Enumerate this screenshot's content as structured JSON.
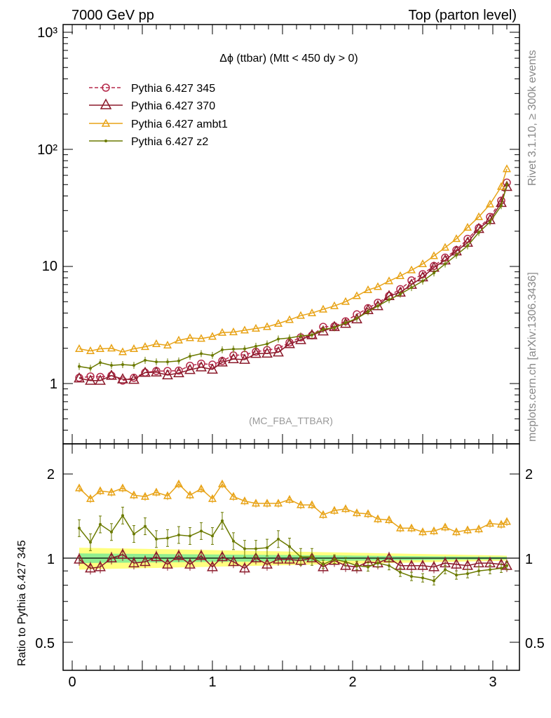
{
  "header": {
    "left": "7000 GeV pp",
    "right": "Top (parton level)"
  },
  "side_labels": {
    "rivet": "Rivet 3.1.10, ≥ 300k events",
    "mcplots": "mcplots.cern.ch [arXiv:1306.3436]"
  },
  "colors": {
    "p345": "#b5294a",
    "p370": "#8b1a2b",
    "ambt1": "#e8a317",
    "z2": "#6b7a00",
    "band_green": "#90ee90",
    "band_yellow": "#ffff80"
  },
  "chart_data": [
    {
      "type": "line",
      "title": "Δϕ (ttbar) (Mtt < 450 dy > 0)",
      "watermark": "(MC_FBA_TTBAR)",
      "yscale": "log",
      "ylim": [
        0.3,
        1100
      ],
      "xlim": [
        -0.06,
        3.2
      ],
      "ytick_labels": [
        "1",
        "10",
        "10²",
        "10³"
      ],
      "legend_position": "top-left",
      "x": [
        0.05,
        0.13,
        0.2,
        0.28,
        0.36,
        0.44,
        0.52,
        0.6,
        0.68,
        0.76,
        0.84,
        0.92,
        1.0,
        1.07,
        1.15,
        1.23,
        1.31,
        1.39,
        1.47,
        1.55,
        1.63,
        1.71,
        1.79,
        1.87,
        1.95,
        2.03,
        2.11,
        2.18,
        2.26,
        2.34,
        2.42,
        2.5,
        2.58,
        2.66,
        2.74,
        2.82,
        2.9,
        2.98,
        3.06,
        3.1
      ],
      "series": [
        {
          "name": "Pythia 6.427 345",
          "marker": "circle",
          "dashed": true,
          "values": [
            1.12,
            1.15,
            1.14,
            1.17,
            1.06,
            1.12,
            1.24,
            1.28,
            1.28,
            1.29,
            1.42,
            1.48,
            1.45,
            1.56,
            1.74,
            1.76,
            1.87,
            1.93,
            2.0,
            2.24,
            2.48,
            2.58,
            3.05,
            3.08,
            3.4,
            3.9,
            4.4,
            4.9,
            5.6,
            6.4,
            7.6,
            8.6,
            10.1,
            11.9,
            13.8,
            17.2,
            21.3,
            26.5,
            36.5,
            52.0
          ]
        },
        {
          "name": "Pythia 6.427 370",
          "marker": "triangle",
          "dashed": false,
          "values": [
            1.11,
            1.06,
            1.06,
            1.17,
            1.09,
            1.08,
            1.24,
            1.25,
            1.18,
            1.23,
            1.31,
            1.38,
            1.32,
            1.52,
            1.62,
            1.6,
            1.8,
            1.81,
            1.85,
            2.18,
            2.36,
            2.6,
            2.8,
            3.05,
            3.25,
            3.55,
            4.25,
            4.6,
            5.6,
            6.0,
            7.0,
            8.1,
            9.8,
            11.3,
            13.5,
            16.0,
            21.0,
            25.0,
            35.0,
            48.0
          ]
        },
        {
          "name": "Pythia 6.427 ambt1",
          "marker": "triangle-open",
          "dashed": false,
          "values": [
            1.98,
            1.9,
            1.98,
            2.0,
            1.86,
            1.98,
            2.06,
            2.18,
            2.12,
            2.34,
            2.45,
            2.42,
            2.52,
            2.72,
            2.75,
            2.85,
            2.95,
            3.05,
            3.25,
            3.5,
            3.8,
            4.0,
            4.3,
            4.6,
            5.0,
            5.6,
            6.3,
            6.7,
            7.5,
            8.3,
            9.3,
            10.5,
            12.3,
            14.5,
            17.2,
            21.5,
            26.5,
            34.0,
            48.0,
            68.0
          ]
        },
        {
          "name": "Pythia 6.427 z2",
          "marker": "dot",
          "dashed": false,
          "values": [
            1.4,
            1.35,
            1.51,
            1.43,
            1.45,
            1.43,
            1.58,
            1.53,
            1.53,
            1.56,
            1.71,
            1.8,
            1.74,
            1.94,
            1.97,
            1.98,
            2.08,
            2.18,
            2.4,
            2.45,
            2.55,
            2.6,
            2.9,
            3.0,
            3.3,
            3.6,
            4.1,
            4.6,
            5.2,
            5.8,
            6.6,
            7.5,
            8.8,
            10.5,
            12.5,
            15.0,
            19.5,
            24.0,
            33.0,
            50.0
          ]
        }
      ]
    },
    {
      "type": "line",
      "ylabel": "Ratio to Pythia 6.427 345",
      "yscale": "log",
      "ylim": [
        0.42,
        2.55
      ],
      "xlim": [
        -0.06,
        3.2
      ],
      "x_ticks": [
        0,
        1,
        2,
        3
      ],
      "y_ticks": [
        0.5,
        1,
        2
      ],
      "reference_line": 1,
      "uncertainty_band_green": 0.04,
      "uncertainty_band_yellow": 0.09,
      "series": [
        {
          "name": "Pythia 6.427 370",
          "values": [
            0.99,
            0.92,
            0.93,
            1.0,
            1.03,
            0.96,
            0.97,
            1.01,
            0.95,
            1.02,
            0.95,
            1.02,
            0.93,
            1.01,
            0.97,
            0.92,
            1.0,
            0.95,
            0.99,
            0.99,
            0.98,
            1.0,
            0.93,
            0.98,
            0.94,
            0.93,
            0.97,
            0.96,
            1.0,
            0.94,
            0.94,
            0.94,
            0.93,
            0.96,
            0.95,
            0.94,
            0.96,
            0.96,
            0.95,
            0.94
          ]
        },
        {
          "name": "Pythia 6.427 ambt1",
          "values": [
            1.78,
            1.63,
            1.74,
            1.72,
            1.78,
            1.68,
            1.66,
            1.72,
            1.67,
            1.84,
            1.68,
            1.77,
            1.63,
            1.84,
            1.66,
            1.6,
            1.57,
            1.57,
            1.57,
            1.62,
            1.55,
            1.55,
            1.43,
            1.48,
            1.5,
            1.45,
            1.44,
            1.38,
            1.37,
            1.28,
            1.28,
            1.24,
            1.25,
            1.29,
            1.24,
            1.26,
            1.27,
            1.33,
            1.32,
            1.35
          ]
        },
        {
          "name": "Pythia 6.427 z2",
          "values": [
            1.28,
            1.14,
            1.32,
            1.24,
            1.42,
            1.22,
            1.3,
            1.17,
            1.18,
            1.21,
            1.2,
            1.25,
            1.2,
            1.36,
            1.15,
            1.08,
            1.08,
            1.09,
            1.17,
            1.1,
            1.01,
            1.01,
            0.95,
            0.99,
            0.97,
            0.94,
            0.93,
            0.96,
            0.94,
            0.89,
            0.86,
            0.85,
            0.83,
            0.91,
            0.87,
            0.88,
            0.9,
            0.91,
            0.92,
            0.94
          ]
        }
      ]
    }
  ]
}
